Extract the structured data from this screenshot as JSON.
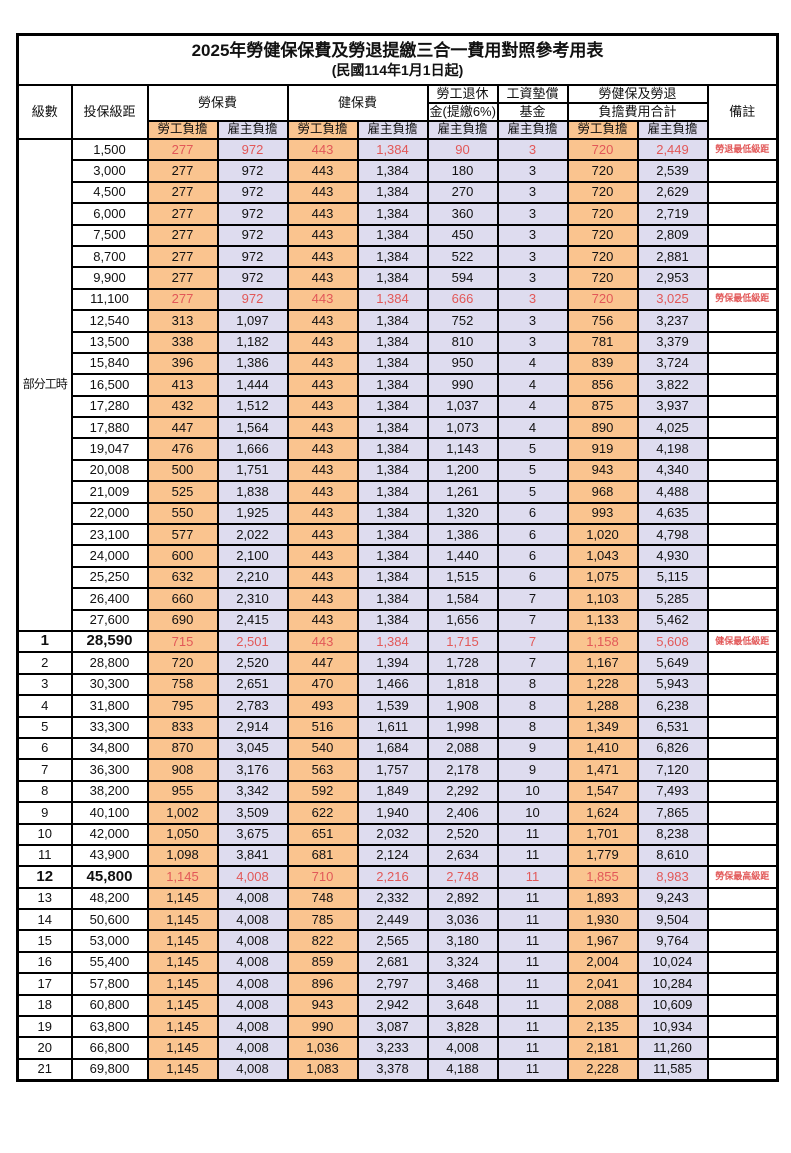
{
  "colors": {
    "employee_fill_orange": "#FAC48F",
    "employer_fill_lavender": "#DEDCEF",
    "highlight_red": "#E25858"
  },
  "title": {
    "line1": "2025年勞健保保費及勞退提繳三合一費用對照參考用表",
    "line2": "(民國114年1月1日起)"
  },
  "header": {
    "level": "級數",
    "bracket": "投保級距",
    "labor_insurance": "勞保費",
    "health_insurance": "健保費",
    "pension_line1": "勞工退休",
    "pension_line2": "金(提繳6%)",
    "wage_fund_line1": "工資墊償",
    "wage_fund_line2": "基金",
    "total_line1": "勞健保及勞退",
    "total_line2": "負擔費用合計",
    "remark": "備註",
    "employee": "勞工負擔",
    "employer": "雇主負擔"
  },
  "subheaders": [
    "勞工負擔",
    "雇主負擔",
    "勞工負擔",
    "雇主負擔",
    "雇主負擔",
    "雇主負擔",
    "勞工負擔",
    "雇主負擔"
  ],
  "part_time_label": "部分工時",
  "part_time_row_span": 23,
  "rows": [
    {
      "level": "",
      "bracket": "1,500",
      "values": [
        "277",
        "972",
        "443",
        "1,384",
        "90",
        "3",
        "720",
        "2,449"
      ],
      "remark": "勞退最低級距",
      "red": true,
      "emph": false
    },
    {
      "level": "",
      "bracket": "3,000",
      "values": [
        "277",
        "972",
        "443",
        "1,384",
        "180",
        "3",
        "720",
        "2,539"
      ],
      "remark": "",
      "red": false,
      "emph": false
    },
    {
      "level": "",
      "bracket": "4,500",
      "values": [
        "277",
        "972",
        "443",
        "1,384",
        "270",
        "3",
        "720",
        "2,629"
      ],
      "remark": "",
      "red": false,
      "emph": false
    },
    {
      "level": "",
      "bracket": "6,000",
      "values": [
        "277",
        "972",
        "443",
        "1,384",
        "360",
        "3",
        "720",
        "2,719"
      ],
      "remark": "",
      "red": false,
      "emph": false
    },
    {
      "level": "",
      "bracket": "7,500",
      "values": [
        "277",
        "972",
        "443",
        "1,384",
        "450",
        "3",
        "720",
        "2,809"
      ],
      "remark": "",
      "red": false,
      "emph": false
    },
    {
      "level": "",
      "bracket": "8,700",
      "values": [
        "277",
        "972",
        "443",
        "1,384",
        "522",
        "3",
        "720",
        "2,881"
      ],
      "remark": "",
      "red": false,
      "emph": false
    },
    {
      "level": "",
      "bracket": "9,900",
      "values": [
        "277",
        "972",
        "443",
        "1,384",
        "594",
        "3",
        "720",
        "2,953"
      ],
      "remark": "",
      "red": false,
      "emph": false
    },
    {
      "level": "",
      "bracket": "11,100",
      "values": [
        "277",
        "972",
        "443",
        "1,384",
        "666",
        "3",
        "720",
        "3,025"
      ],
      "remark": "勞保最低級距",
      "red": true,
      "emph": false
    },
    {
      "level": "",
      "bracket": "12,540",
      "values": [
        "313",
        "1,097",
        "443",
        "1,384",
        "752",
        "3",
        "756",
        "3,237"
      ],
      "remark": "",
      "red": false,
      "emph": false
    },
    {
      "level": "",
      "bracket": "13,500",
      "values": [
        "338",
        "1,182",
        "443",
        "1,384",
        "810",
        "3",
        "781",
        "3,379"
      ],
      "remark": "",
      "red": false,
      "emph": false
    },
    {
      "level": "",
      "bracket": "15,840",
      "values": [
        "396",
        "1,386",
        "443",
        "1,384",
        "950",
        "4",
        "839",
        "3,724"
      ],
      "remark": "",
      "red": false,
      "emph": false
    },
    {
      "level": "",
      "bracket": "16,500",
      "values": [
        "413",
        "1,444",
        "443",
        "1,384",
        "990",
        "4",
        "856",
        "3,822"
      ],
      "remark": "",
      "red": false,
      "emph": false
    },
    {
      "level": "",
      "bracket": "17,280",
      "values": [
        "432",
        "1,512",
        "443",
        "1,384",
        "1,037",
        "4",
        "875",
        "3,937"
      ],
      "remark": "",
      "red": false,
      "emph": false
    },
    {
      "level": "",
      "bracket": "17,880",
      "values": [
        "447",
        "1,564",
        "443",
        "1,384",
        "1,073",
        "4",
        "890",
        "4,025"
      ],
      "remark": "",
      "red": false,
      "emph": false
    },
    {
      "level": "",
      "bracket": "19,047",
      "values": [
        "476",
        "1,666",
        "443",
        "1,384",
        "1,143",
        "5",
        "919",
        "4,198"
      ],
      "remark": "",
      "red": false,
      "emph": false
    },
    {
      "level": "",
      "bracket": "20,008",
      "values": [
        "500",
        "1,751",
        "443",
        "1,384",
        "1,200",
        "5",
        "943",
        "4,340"
      ],
      "remark": "",
      "red": false,
      "emph": false
    },
    {
      "level": "",
      "bracket": "21,009",
      "values": [
        "525",
        "1,838",
        "443",
        "1,384",
        "1,261",
        "5",
        "968",
        "4,488"
      ],
      "remark": "",
      "red": false,
      "emph": false
    },
    {
      "level": "",
      "bracket": "22,000",
      "values": [
        "550",
        "1,925",
        "443",
        "1,384",
        "1,320",
        "6",
        "993",
        "4,635"
      ],
      "remark": "",
      "red": false,
      "emph": false
    },
    {
      "level": "",
      "bracket": "23,100",
      "values": [
        "577",
        "2,022",
        "443",
        "1,384",
        "1,386",
        "6",
        "1,020",
        "4,798"
      ],
      "remark": "",
      "red": false,
      "emph": false
    },
    {
      "level": "",
      "bracket": "24,000",
      "values": [
        "600",
        "2,100",
        "443",
        "1,384",
        "1,440",
        "6",
        "1,043",
        "4,930"
      ],
      "remark": "",
      "red": false,
      "emph": false
    },
    {
      "level": "",
      "bracket": "25,250",
      "values": [
        "632",
        "2,210",
        "443",
        "1,384",
        "1,515",
        "6",
        "1,075",
        "5,115"
      ],
      "remark": "",
      "red": false,
      "emph": false
    },
    {
      "level": "",
      "bracket": "26,400",
      "values": [
        "660",
        "2,310",
        "443",
        "1,384",
        "1,584",
        "7",
        "1,103",
        "5,285"
      ],
      "remark": "",
      "red": false,
      "emph": false
    },
    {
      "level": "",
      "bracket": "27,600",
      "values": [
        "690",
        "2,415",
        "443",
        "1,384",
        "1,656",
        "7",
        "1,133",
        "5,462"
      ],
      "remark": "",
      "red": false,
      "emph": false
    },
    {
      "level": "1",
      "bracket": "28,590",
      "values": [
        "715",
        "2,501",
        "443",
        "1,384",
        "1,715",
        "7",
        "1,158",
        "5,608"
      ],
      "remark": "健保最低級距",
      "red": true,
      "emph": true
    },
    {
      "level": "2",
      "bracket": "28,800",
      "values": [
        "720",
        "2,520",
        "447",
        "1,394",
        "1,728",
        "7",
        "1,167",
        "5,649"
      ],
      "remark": "",
      "red": false,
      "emph": false
    },
    {
      "level": "3",
      "bracket": "30,300",
      "values": [
        "758",
        "2,651",
        "470",
        "1,466",
        "1,818",
        "8",
        "1,228",
        "5,943"
      ],
      "remark": "",
      "red": false,
      "emph": false
    },
    {
      "level": "4",
      "bracket": "31,800",
      "values": [
        "795",
        "2,783",
        "493",
        "1,539",
        "1,908",
        "8",
        "1,288",
        "6,238"
      ],
      "remark": "",
      "red": false,
      "emph": false
    },
    {
      "level": "5",
      "bracket": "33,300",
      "values": [
        "833",
        "2,914",
        "516",
        "1,611",
        "1,998",
        "8",
        "1,349",
        "6,531"
      ],
      "remark": "",
      "red": false,
      "emph": false
    },
    {
      "level": "6",
      "bracket": "34,800",
      "values": [
        "870",
        "3,045",
        "540",
        "1,684",
        "2,088",
        "9",
        "1,410",
        "6,826"
      ],
      "remark": "",
      "red": false,
      "emph": false
    },
    {
      "level": "7",
      "bracket": "36,300",
      "values": [
        "908",
        "3,176",
        "563",
        "1,757",
        "2,178",
        "9",
        "1,471",
        "7,120"
      ],
      "remark": "",
      "red": false,
      "emph": false
    },
    {
      "level": "8",
      "bracket": "38,200",
      "values": [
        "955",
        "3,342",
        "592",
        "1,849",
        "2,292",
        "10",
        "1,547",
        "7,493"
      ],
      "remark": "",
      "red": false,
      "emph": false
    },
    {
      "level": "9",
      "bracket": "40,100",
      "values": [
        "1,002",
        "3,509",
        "622",
        "1,940",
        "2,406",
        "10",
        "1,624",
        "7,865"
      ],
      "remark": "",
      "red": false,
      "emph": false
    },
    {
      "level": "10",
      "bracket": "42,000",
      "values": [
        "1,050",
        "3,675",
        "651",
        "2,032",
        "2,520",
        "11",
        "1,701",
        "8,238"
      ],
      "remark": "",
      "red": false,
      "emph": false
    },
    {
      "level": "11",
      "bracket": "43,900",
      "values": [
        "1,098",
        "3,841",
        "681",
        "2,124",
        "2,634",
        "11",
        "1,779",
        "8,610"
      ],
      "remark": "",
      "red": false,
      "emph": false
    },
    {
      "level": "12",
      "bracket": "45,800",
      "values": [
        "1,145",
        "4,008",
        "710",
        "2,216",
        "2,748",
        "11",
        "1,855",
        "8,983"
      ],
      "remark": "勞保最高級距",
      "red": true,
      "emph": true
    },
    {
      "level": "13",
      "bracket": "48,200",
      "values": [
        "1,145",
        "4,008",
        "748",
        "2,332",
        "2,892",
        "11",
        "1,893",
        "9,243"
      ],
      "remark": "",
      "red": false,
      "emph": false
    },
    {
      "level": "14",
      "bracket": "50,600",
      "values": [
        "1,145",
        "4,008",
        "785",
        "2,449",
        "3,036",
        "11",
        "1,930",
        "9,504"
      ],
      "remark": "",
      "red": false,
      "emph": false
    },
    {
      "level": "15",
      "bracket": "53,000",
      "values": [
        "1,145",
        "4,008",
        "822",
        "2,565",
        "3,180",
        "11",
        "1,967",
        "9,764"
      ],
      "remark": "",
      "red": false,
      "emph": false
    },
    {
      "level": "16",
      "bracket": "55,400",
      "values": [
        "1,145",
        "4,008",
        "859",
        "2,681",
        "3,324",
        "11",
        "2,004",
        "10,024"
      ],
      "remark": "",
      "red": false,
      "emph": false
    },
    {
      "level": "17",
      "bracket": "57,800",
      "values": [
        "1,145",
        "4,008",
        "896",
        "2,797",
        "3,468",
        "11",
        "2,041",
        "10,284"
      ],
      "remark": "",
      "red": false,
      "emph": false
    },
    {
      "level": "18",
      "bracket": "60,800",
      "values": [
        "1,145",
        "4,008",
        "943",
        "2,942",
        "3,648",
        "11",
        "2,088",
        "10,609"
      ],
      "remark": "",
      "red": false,
      "emph": false
    },
    {
      "level": "19",
      "bracket": "63,800",
      "values": [
        "1,145",
        "4,008",
        "990",
        "3,087",
        "3,828",
        "11",
        "2,135",
        "10,934"
      ],
      "remark": "",
      "red": false,
      "emph": false
    },
    {
      "level": "20",
      "bracket": "66,800",
      "values": [
        "1,145",
        "4,008",
        "1,036",
        "3,233",
        "4,008",
        "11",
        "2,181",
        "11,260"
      ],
      "remark": "",
      "red": false,
      "emph": false
    },
    {
      "level": "21",
      "bracket": "69,800",
      "values": [
        "1,145",
        "4,008",
        "1,083",
        "3,378",
        "4,188",
        "11",
        "2,228",
        "11,585"
      ],
      "remark": "",
      "red": false,
      "emph": false
    }
  ]
}
